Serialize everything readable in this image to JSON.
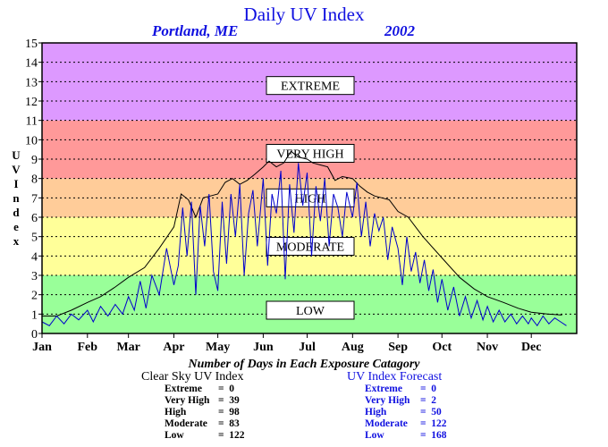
{
  "header": {
    "title": "Daily UV Index",
    "location": "Portland, ME",
    "year": "2002"
  },
  "chart_data": {
    "type": "line",
    "ylabel": "UV Index",
    "ylim": [
      0,
      15
    ],
    "yticks": [
      0,
      1,
      2,
      3,
      4,
      5,
      6,
      7,
      8,
      9,
      10,
      11,
      12,
      13,
      14,
      15
    ],
    "xlim": [
      0,
      365
    ],
    "xticks": [
      {
        "label": "Jan",
        "day": 0
      },
      {
        "label": "Feb",
        "day": 31
      },
      {
        "label": "Mar",
        "day": 59
      },
      {
        "label": "Apr",
        "day": 90
      },
      {
        "label": "May",
        "day": 120
      },
      {
        "label": "Jun",
        "day": 151
      },
      {
        "label": "Jul",
        "day": 181
      },
      {
        "label": "Aug",
        "day": 212
      },
      {
        "label": "Sep",
        "day": 243
      },
      {
        "label": "Oct",
        "day": 273
      },
      {
        "label": "Nov",
        "day": 304
      },
      {
        "label": "Dec",
        "day": 334
      }
    ],
    "grid": true,
    "bands": [
      {
        "name": "LOW",
        "from": 0,
        "to": 3,
        "color": "#99ff99",
        "label_y": 1.2
      },
      {
        "name": "MODERATE",
        "from": 3,
        "to": 6,
        "color": "#ffff99",
        "label_y": 4.5
      },
      {
        "name": "HIGH",
        "from": 6,
        "to": 8,
        "color": "#ffcc99",
        "label_y": 7.0
      },
      {
        "name": "VERY HIGH",
        "from": 8,
        "to": 11,
        "color": "#ff9999",
        "label_y": 9.3
      },
      {
        "name": "EXTREME",
        "from": 11,
        "to": 15,
        "color": "#dd99ff",
        "label_y": 12.8
      }
    ],
    "series": [
      {
        "color": "#000000",
        "x": [
          0,
          10,
          20,
          31,
          40,
          50,
          59,
          70,
          80,
          90,
          95,
          100,
          105,
          110,
          115,
          120,
          125,
          130,
          135,
          140,
          145,
          151,
          155,
          160,
          165,
          170,
          175,
          181,
          185,
          190,
          195,
          200,
          205,
          212,
          217,
          222,
          227,
          232,
          237,
          243,
          250,
          260,
          273,
          285,
          295,
          304,
          315,
          325,
          334,
          345,
          355
        ],
        "values": [
          0.9,
          0.9,
          1.2,
          1.6,
          1.9,
          2.4,
          2.9,
          3.4,
          4.4,
          5.5,
          7.2,
          6.9,
          6.0,
          7.0,
          7.1,
          7.2,
          7.8,
          8.0,
          7.7,
          7.9,
          8.2,
          8.6,
          8.9,
          8.6,
          8.8,
          9.4,
          9.1,
          9.0,
          8.8,
          8.7,
          8.6,
          7.9,
          8.1,
          8.0,
          7.6,
          7.3,
          7.1,
          7.0,
          6.9,
          6.3,
          6.0,
          5.0,
          3.9,
          2.9,
          2.3,
          1.9,
          1.6,
          1.3,
          1.1,
          1.0,
          0.95
        ]
      },
      {
        "color": "#0000cc",
        "x": [
          0,
          5,
          10,
          15,
          20,
          25,
          31,
          35,
          40,
          45,
          50,
          55,
          59,
          63,
          67,
          71,
          75,
          80,
          85,
          90,
          93,
          96,
          99,
          102,
          105,
          108,
          111,
          114,
          117,
          120,
          123,
          126,
          129,
          132,
          135,
          138,
          141,
          144,
          147,
          151,
          154,
          157,
          160,
          163,
          166,
          169,
          172,
          175,
          178,
          181,
          184,
          187,
          190,
          193,
          196,
          199,
          202,
          205,
          208,
          212,
          215,
          218,
          221,
          224,
          227,
          230,
          233,
          236,
          239,
          243,
          246,
          249,
          252,
          255,
          258,
          261,
          264,
          267,
          270,
          273,
          277,
          281,
          285,
          289,
          293,
          297,
          301,
          304,
          308,
          312,
          316,
          320,
          324,
          328,
          332,
          334,
          338,
          342,
          346,
          350,
          354,
          358
        ],
        "values": [
          0.6,
          0.4,
          0.9,
          0.5,
          1.0,
          0.7,
          1.2,
          0.6,
          1.4,
          0.9,
          1.5,
          1.0,
          1.9,
          1.2,
          2.7,
          1.3,
          3.0,
          2.0,
          4.4,
          2.5,
          3.5,
          6.5,
          4.0,
          6.8,
          2.0,
          6.6,
          4.5,
          7.2,
          3.2,
          2.2,
          6.8,
          3.6,
          7.2,
          5.0,
          7.7,
          3.0,
          6.2,
          7.4,
          4.5,
          8.0,
          3.5,
          7.2,
          6.2,
          8.4,
          2.8,
          7.7,
          5.2,
          8.8,
          6.6,
          8.3,
          4.0,
          7.6,
          5.8,
          8.0,
          4.5,
          7.2,
          6.5,
          5.0,
          7.3,
          6.0,
          7.8,
          5.0,
          6.8,
          4.5,
          6.2,
          5.3,
          6.0,
          3.8,
          5.5,
          4.4,
          2.5,
          5.0,
          3.2,
          4.2,
          2.6,
          3.8,
          2.2,
          3.3,
          1.6,
          2.8,
          1.2,
          2.4,
          0.9,
          1.9,
          0.8,
          1.7,
          0.7,
          1.4,
          0.6,
          1.2,
          0.6,
          1.0,
          0.5,
          0.9,
          0.5,
          0.8,
          0.4,
          0.9,
          0.5,
          0.8,
          0.6,
          0.4
        ]
      }
    ]
  },
  "stats": {
    "title": "Number of Days in Each Exposure Catagory",
    "clear_sky": {
      "heading": "Clear Sky UV Index",
      "rows": [
        {
          "label": "Extreme",
          "value": "0"
        },
        {
          "label": "Very High",
          "value": "39"
        },
        {
          "label": "High",
          "value": "98"
        },
        {
          "label": "Moderate",
          "value": "83"
        },
        {
          "label": "Low",
          "value": "122"
        }
      ]
    },
    "forecast": {
      "heading": "UV Index Forecast",
      "rows": [
        {
          "label": "Extreme",
          "value": "0"
        },
        {
          "label": "Very High",
          "value": "2"
        },
        {
          "label": "High",
          "value": "50"
        },
        {
          "label": "Moderate",
          "value": "122"
        },
        {
          "label": "Low",
          "value": "168"
        }
      ]
    }
  }
}
